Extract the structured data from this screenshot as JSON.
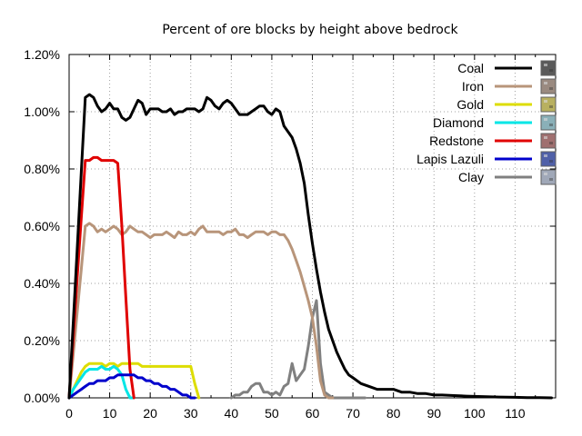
{
  "chart_data": {
    "type": "line",
    "title": "Percent of ore blocks by height above bedrock",
    "xlabel": "",
    "ylabel": "",
    "xlim": [
      0,
      120
    ],
    "ylim": [
      0,
      0.012
    ],
    "grid": true,
    "legend_position": "top-right",
    "x_ticks": [
      {
        "value": 0,
        "label": "0"
      },
      {
        "value": 10,
        "label": "10"
      },
      {
        "value": 20,
        "label": "20"
      },
      {
        "value": 30,
        "label": "30"
      },
      {
        "value": 40,
        "label": "40"
      },
      {
        "value": 50,
        "label": "50"
      },
      {
        "value": 60,
        "label": "60"
      },
      {
        "value": 70,
        "label": "70"
      },
      {
        "value": 80,
        "label": "80"
      },
      {
        "value": 90,
        "label": "90"
      },
      {
        "value": 100,
        "label": "100"
      },
      {
        "value": 110,
        "label": "110"
      }
    ],
    "y_ticks": [
      {
        "value": 0,
        "label": "0.00%"
      },
      {
        "value": 0.002,
        "label": "0.20%"
      },
      {
        "value": 0.004,
        "label": "0.40%"
      },
      {
        "value": 0.006,
        "label": "0.60%"
      },
      {
        "value": 0.008,
        "label": "0.80%"
      },
      {
        "value": 0.01,
        "label": "1.00%"
      },
      {
        "value": 0.012,
        "label": "1.20%"
      }
    ],
    "series": [
      {
        "name": "Coal",
        "color": "#000000",
        "swatch": "#5a5a5a",
        "x": [
          0,
          1,
          2,
          3,
          4,
          5,
          6,
          7,
          8,
          9,
          10,
          11,
          12,
          13,
          14,
          15,
          16,
          17,
          18,
          19,
          20,
          21,
          22,
          23,
          24,
          25,
          26,
          27,
          28,
          29,
          30,
          31,
          32,
          33,
          34,
          35,
          36,
          37,
          38,
          39,
          40,
          41,
          42,
          43,
          44,
          45,
          46,
          47,
          48,
          49,
          50,
          51,
          52,
          53,
          54,
          55,
          56,
          57,
          58,
          59,
          60,
          61,
          62,
          63,
          64,
          65,
          66,
          67,
          68,
          69,
          70,
          72,
          74,
          76,
          78,
          80,
          82,
          84,
          86,
          88,
          90,
          92,
          95,
          98,
          100,
          103,
          106,
          110,
          113,
          116,
          119
        ],
        "values": [
          0.0,
          0.0026,
          0.0052,
          0.0079,
          0.0105,
          0.0106,
          0.0105,
          0.0102,
          0.01,
          0.0101,
          0.0103,
          0.0101,
          0.0101,
          0.0098,
          0.0097,
          0.0098,
          0.0101,
          0.0104,
          0.0103,
          0.0099,
          0.0101,
          0.0101,
          0.0101,
          0.01,
          0.01,
          0.0101,
          0.0099,
          0.01,
          0.01,
          0.0101,
          0.0101,
          0.0101,
          0.01,
          0.0101,
          0.0105,
          0.0104,
          0.0102,
          0.0101,
          0.0103,
          0.0104,
          0.0103,
          0.0101,
          0.0099,
          0.0099,
          0.0099,
          0.01,
          0.0101,
          0.0102,
          0.0102,
          0.01,
          0.0099,
          0.0101,
          0.01,
          0.0095,
          0.0093,
          0.0091,
          0.0087,
          0.0082,
          0.0075,
          0.0064,
          0.0054,
          0.0045,
          0.0037,
          0.003,
          0.0024,
          0.002,
          0.0016,
          0.0013,
          0.001,
          0.0008,
          0.0007,
          0.0005,
          0.0004,
          0.0003,
          0.0003,
          0.0003,
          0.0002,
          0.0002,
          0.00015,
          0.00015,
          0.0001,
          0.0001,
          8e-05,
          6e-05,
          5e-05,
          4e-05,
          3e-05,
          2e-05,
          1e-05,
          1e-05,
          0.0
        ]
      },
      {
        "name": "Iron",
        "color": "#b8957a",
        "swatch": "#9a8a80",
        "x": [
          0,
          1,
          2,
          3,
          4,
          5,
          6,
          7,
          8,
          9,
          10,
          11,
          12,
          13,
          14,
          15,
          16,
          17,
          18,
          19,
          20,
          21,
          22,
          23,
          24,
          25,
          26,
          27,
          28,
          29,
          30,
          31,
          32,
          33,
          34,
          35,
          36,
          37,
          38,
          39,
          40,
          41,
          42,
          43,
          44,
          45,
          46,
          47,
          48,
          49,
          50,
          51,
          52,
          53,
          54,
          55,
          56,
          57,
          58,
          59,
          60,
          61,
          62,
          63,
          64,
          65
        ],
        "values": [
          0.0,
          0.0015,
          0.003,
          0.0045,
          0.006,
          0.0061,
          0.006,
          0.0058,
          0.0059,
          0.0058,
          0.0059,
          0.006,
          0.0059,
          0.0057,
          0.0058,
          0.006,
          0.0059,
          0.0058,
          0.0058,
          0.0057,
          0.0056,
          0.0057,
          0.0057,
          0.0057,
          0.0058,
          0.0057,
          0.0056,
          0.0058,
          0.0057,
          0.0057,
          0.0058,
          0.0057,
          0.0059,
          0.006,
          0.0058,
          0.0058,
          0.0058,
          0.0058,
          0.0057,
          0.0058,
          0.0058,
          0.0059,
          0.0057,
          0.0057,
          0.0056,
          0.0057,
          0.0058,
          0.0058,
          0.0058,
          0.0057,
          0.0058,
          0.0058,
          0.0057,
          0.0057,
          0.0055,
          0.0052,
          0.0048,
          0.0044,
          0.0039,
          0.0034,
          0.0028,
          0.0018,
          0.0006,
          0.0001,
          0.0,
          0.0
        ]
      },
      {
        "name": "Gold",
        "color": "#dddd00",
        "swatch": "#b8b060",
        "x": [
          0,
          1,
          2,
          3,
          4,
          5,
          6,
          7,
          8,
          9,
          10,
          11,
          12,
          13,
          14,
          15,
          16,
          17,
          18,
          19,
          20,
          21,
          22,
          23,
          24,
          25,
          26,
          27,
          28,
          29,
          30,
          31,
          32
        ],
        "values": [
          0.0,
          0.0003,
          0.0006,
          0.0009,
          0.0011,
          0.0012,
          0.0012,
          0.0012,
          0.0012,
          0.0011,
          0.0012,
          0.0012,
          0.0011,
          0.0012,
          0.0012,
          0.0012,
          0.0012,
          0.0012,
          0.0011,
          0.0011,
          0.0011,
          0.0011,
          0.0011,
          0.0011,
          0.0011,
          0.0011,
          0.0011,
          0.0011,
          0.0011,
          0.0011,
          0.0011,
          0.0005,
          0.0
        ]
      },
      {
        "name": "Diamond",
        "color": "#00e6e6",
        "swatch": "#8ab0b8",
        "x": [
          0,
          1,
          2,
          3,
          4,
          5,
          6,
          7,
          8,
          9,
          10,
          11,
          12,
          13,
          14,
          15,
          16
        ],
        "values": [
          0.0,
          0.0003,
          0.0005,
          0.0007,
          0.0009,
          0.001,
          0.001,
          0.001,
          0.0011,
          0.001,
          0.001,
          0.0011,
          0.001,
          0.0008,
          0.0003,
          0.0,
          0.0
        ]
      },
      {
        "name": "Redstone",
        "color": "#e00000",
        "swatch": "#a07070",
        "x": [
          0,
          1,
          2,
          3,
          4,
          5,
          6,
          7,
          8,
          9,
          10,
          11,
          12,
          13,
          14,
          15,
          16
        ],
        "values": [
          0.0,
          0.0021,
          0.0042,
          0.0063,
          0.0083,
          0.0083,
          0.0084,
          0.0084,
          0.0083,
          0.0083,
          0.0083,
          0.0083,
          0.0082,
          0.006,
          0.0035,
          0.001,
          0.0
        ]
      },
      {
        "name": "Lapis Lazuli",
        "color": "#0000cc",
        "swatch": "#5060a8",
        "x": [
          0,
          1,
          2,
          3,
          4,
          5,
          6,
          7,
          8,
          9,
          10,
          11,
          12,
          13,
          14,
          15,
          16,
          17,
          18,
          19,
          20,
          21,
          22,
          23,
          24,
          25,
          26,
          27,
          28,
          29,
          30,
          31
        ],
        "values": [
          0.0,
          0.0001,
          0.0002,
          0.0003,
          0.0004,
          0.0005,
          0.0005,
          0.0006,
          0.0006,
          0.0006,
          0.0007,
          0.0007,
          0.0008,
          0.0008,
          0.0008,
          0.0008,
          0.0008,
          0.0007,
          0.0007,
          0.0006,
          0.0006,
          0.0005,
          0.0005,
          0.0004,
          0.0004,
          0.0003,
          0.0003,
          0.0002,
          0.0001,
          0.0001,
          0.0,
          0.0
        ]
      },
      {
        "name": "Clay",
        "color": "#808080",
        "swatch": "#a0a8b8",
        "x": [
          40,
          41,
          42,
          43,
          44,
          45,
          46,
          47,
          48,
          49,
          50,
          51,
          52,
          53,
          54,
          55,
          56,
          57,
          58,
          59,
          60,
          61,
          62,
          63,
          64,
          65,
          66,
          67,
          68,
          69,
          70,
          71,
          72,
          73
        ],
        "values": [
          0.0,
          0.0001,
          0.0001,
          0.0002,
          0.0002,
          0.0004,
          0.0005,
          0.0005,
          0.0002,
          0.0002,
          0.0001,
          0.0002,
          0.0001,
          0.0004,
          0.0005,
          0.0012,
          0.0006,
          0.0008,
          0.001,
          0.0018,
          0.0028,
          0.0034,
          0.0012,
          0.0002,
          0.0001,
          0.0,
          0.0,
          0.0,
          0.0,
          0.0,
          0.0,
          0.0,
          0.0,
          0.0
        ]
      }
    ]
  }
}
